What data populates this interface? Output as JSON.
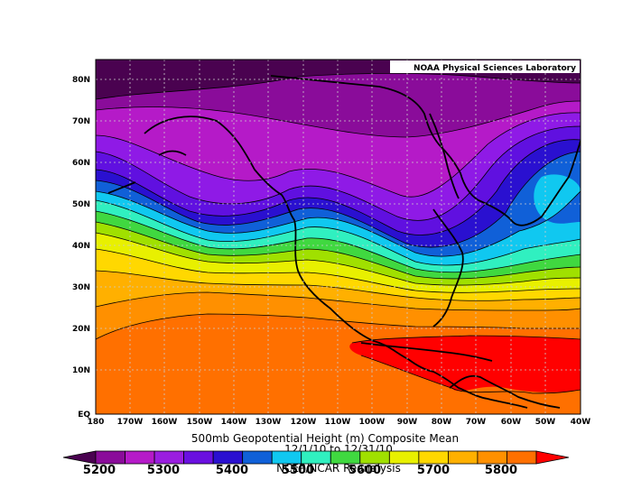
{
  "credit": "NOAA Physical Sciences Laboratory",
  "title": {
    "line1": "500mb Geopotential Height (m) Composite Mean",
    "line2": "12/1/10  to 12/31/10",
    "line3": "NCEP/NCAR Reanalysis"
  },
  "lat_labels": [
    "80N",
    "70N",
    "60N",
    "50N",
    "40N",
    "30N",
    "20N",
    "10N",
    "EQ"
  ],
  "lon_labels": [
    "180",
    "170W",
    "160W",
    "150W",
    "140W",
    "130W",
    "120W",
    "110W",
    "100W",
    "90W",
    "80W",
    "70W",
    "60W",
    "50W",
    "40W"
  ],
  "colorbar": {
    "labels": [
      "5200",
      "5300",
      "5400",
      "5500",
      "5600",
      "5700",
      "5800"
    ],
    "colors": [
      "#4a0250",
      "#8a0c9a",
      "#b51ac8",
      "#9a1ee0",
      "#6a10e0",
      "#2a10d0",
      "#1060d8",
      "#10c8f0",
      "#30f0c0",
      "#40d840",
      "#a0e000",
      "#e8f000",
      "#ffd800",
      "#ffb000",
      "#ff9000",
      "#ff7000",
      "#ff0000"
    ]
  },
  "map_data": {
    "variable": "500mb Geopotential Height",
    "units": "m",
    "period": "12/1/10 to 12/31/10",
    "contour_interval": 50,
    "lat_range": [
      "EQ",
      "85N"
    ],
    "lon_range": [
      "180",
      "40W"
    ]
  }
}
